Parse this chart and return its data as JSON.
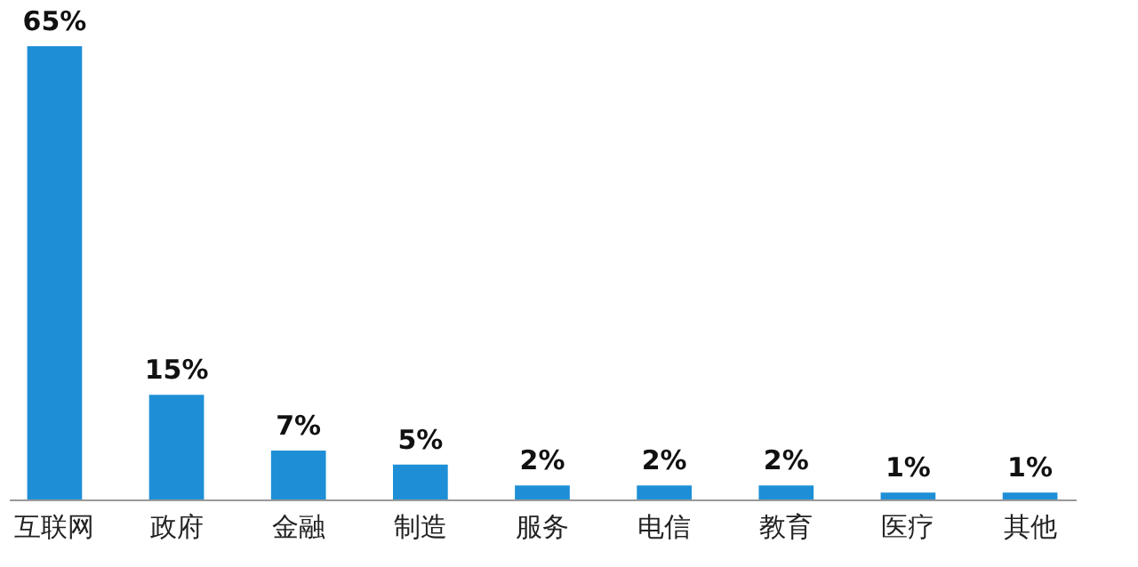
{
  "chart_data": {
    "type": "bar",
    "categories": [
      "互联网",
      "政府",
      "金融",
      "制造",
      "服务",
      "电信",
      "教育",
      "医疗",
      "其他"
    ],
    "values": [
      65,
      15,
      7,
      5,
      2,
      2,
      2,
      1,
      1
    ],
    "value_labels": [
      "65%",
      "15%",
      "7%",
      "5%",
      "2%",
      "2%",
      "2%",
      "1%",
      "1%"
    ],
    "color": "#1e8fd6"
  }
}
